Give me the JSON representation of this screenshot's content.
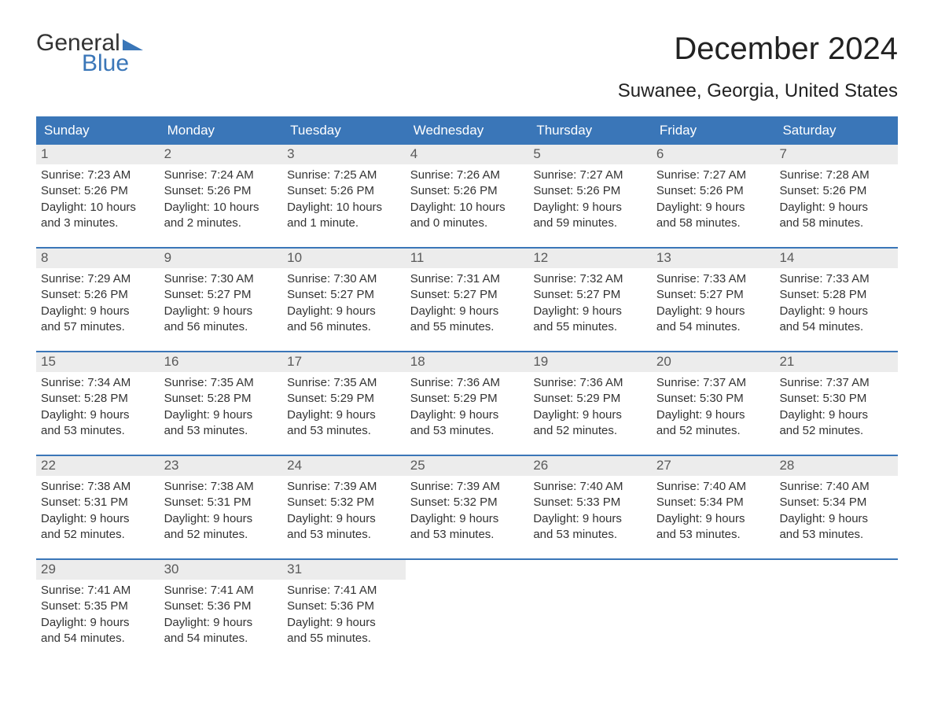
{
  "logo": {
    "word1": "General",
    "word2": "Blue",
    "flag_color": "#3a76b8"
  },
  "title": "December 2024",
  "subtitle": "Suwanee, Georgia, United States",
  "colors": {
    "header_bg": "#3a76b8",
    "header_text": "#ffffff",
    "daynum_bg": "#ececec",
    "daynum_text": "#5a5a5a",
    "body_text": "#333333",
    "week_border": "#3a76b8",
    "page_bg": "#ffffff"
  },
  "fonts": {
    "title_size_pt": 30,
    "subtitle_size_pt": 18,
    "header_size_pt": 13,
    "daynum_size_pt": 13,
    "body_size_pt": 11
  },
  "calendar": {
    "type": "table",
    "columns": [
      "Sunday",
      "Monday",
      "Tuesday",
      "Wednesday",
      "Thursday",
      "Friday",
      "Saturday"
    ],
    "weeks": [
      [
        {
          "n": "1",
          "sunrise": "Sunrise: 7:23 AM",
          "sunset": "Sunset: 5:26 PM",
          "d1": "Daylight: 10 hours",
          "d2": "and 3 minutes."
        },
        {
          "n": "2",
          "sunrise": "Sunrise: 7:24 AM",
          "sunset": "Sunset: 5:26 PM",
          "d1": "Daylight: 10 hours",
          "d2": "and 2 minutes."
        },
        {
          "n": "3",
          "sunrise": "Sunrise: 7:25 AM",
          "sunset": "Sunset: 5:26 PM",
          "d1": "Daylight: 10 hours",
          "d2": "and 1 minute."
        },
        {
          "n": "4",
          "sunrise": "Sunrise: 7:26 AM",
          "sunset": "Sunset: 5:26 PM",
          "d1": "Daylight: 10 hours",
          "d2": "and 0 minutes."
        },
        {
          "n": "5",
          "sunrise": "Sunrise: 7:27 AM",
          "sunset": "Sunset: 5:26 PM",
          "d1": "Daylight: 9 hours",
          "d2": "and 59 minutes."
        },
        {
          "n": "6",
          "sunrise": "Sunrise: 7:27 AM",
          "sunset": "Sunset: 5:26 PM",
          "d1": "Daylight: 9 hours",
          "d2": "and 58 minutes."
        },
        {
          "n": "7",
          "sunrise": "Sunrise: 7:28 AM",
          "sunset": "Sunset: 5:26 PM",
          "d1": "Daylight: 9 hours",
          "d2": "and 58 minutes."
        }
      ],
      [
        {
          "n": "8",
          "sunrise": "Sunrise: 7:29 AM",
          "sunset": "Sunset: 5:26 PM",
          "d1": "Daylight: 9 hours",
          "d2": "and 57 minutes."
        },
        {
          "n": "9",
          "sunrise": "Sunrise: 7:30 AM",
          "sunset": "Sunset: 5:27 PM",
          "d1": "Daylight: 9 hours",
          "d2": "and 56 minutes."
        },
        {
          "n": "10",
          "sunrise": "Sunrise: 7:30 AM",
          "sunset": "Sunset: 5:27 PM",
          "d1": "Daylight: 9 hours",
          "d2": "and 56 minutes."
        },
        {
          "n": "11",
          "sunrise": "Sunrise: 7:31 AM",
          "sunset": "Sunset: 5:27 PM",
          "d1": "Daylight: 9 hours",
          "d2": "and 55 minutes."
        },
        {
          "n": "12",
          "sunrise": "Sunrise: 7:32 AM",
          "sunset": "Sunset: 5:27 PM",
          "d1": "Daylight: 9 hours",
          "d2": "and 55 minutes."
        },
        {
          "n": "13",
          "sunrise": "Sunrise: 7:33 AM",
          "sunset": "Sunset: 5:27 PM",
          "d1": "Daylight: 9 hours",
          "d2": "and 54 minutes."
        },
        {
          "n": "14",
          "sunrise": "Sunrise: 7:33 AM",
          "sunset": "Sunset: 5:28 PM",
          "d1": "Daylight: 9 hours",
          "d2": "and 54 minutes."
        }
      ],
      [
        {
          "n": "15",
          "sunrise": "Sunrise: 7:34 AM",
          "sunset": "Sunset: 5:28 PM",
          "d1": "Daylight: 9 hours",
          "d2": "and 53 minutes."
        },
        {
          "n": "16",
          "sunrise": "Sunrise: 7:35 AM",
          "sunset": "Sunset: 5:28 PM",
          "d1": "Daylight: 9 hours",
          "d2": "and 53 minutes."
        },
        {
          "n": "17",
          "sunrise": "Sunrise: 7:35 AM",
          "sunset": "Sunset: 5:29 PM",
          "d1": "Daylight: 9 hours",
          "d2": "and 53 minutes."
        },
        {
          "n": "18",
          "sunrise": "Sunrise: 7:36 AM",
          "sunset": "Sunset: 5:29 PM",
          "d1": "Daylight: 9 hours",
          "d2": "and 53 minutes."
        },
        {
          "n": "19",
          "sunrise": "Sunrise: 7:36 AM",
          "sunset": "Sunset: 5:29 PM",
          "d1": "Daylight: 9 hours",
          "d2": "and 52 minutes."
        },
        {
          "n": "20",
          "sunrise": "Sunrise: 7:37 AM",
          "sunset": "Sunset: 5:30 PM",
          "d1": "Daylight: 9 hours",
          "d2": "and 52 minutes."
        },
        {
          "n": "21",
          "sunrise": "Sunrise: 7:37 AM",
          "sunset": "Sunset: 5:30 PM",
          "d1": "Daylight: 9 hours",
          "d2": "and 52 minutes."
        }
      ],
      [
        {
          "n": "22",
          "sunrise": "Sunrise: 7:38 AM",
          "sunset": "Sunset: 5:31 PM",
          "d1": "Daylight: 9 hours",
          "d2": "and 52 minutes."
        },
        {
          "n": "23",
          "sunrise": "Sunrise: 7:38 AM",
          "sunset": "Sunset: 5:31 PM",
          "d1": "Daylight: 9 hours",
          "d2": "and 52 minutes."
        },
        {
          "n": "24",
          "sunrise": "Sunrise: 7:39 AM",
          "sunset": "Sunset: 5:32 PM",
          "d1": "Daylight: 9 hours",
          "d2": "and 53 minutes."
        },
        {
          "n": "25",
          "sunrise": "Sunrise: 7:39 AM",
          "sunset": "Sunset: 5:32 PM",
          "d1": "Daylight: 9 hours",
          "d2": "and 53 minutes."
        },
        {
          "n": "26",
          "sunrise": "Sunrise: 7:40 AM",
          "sunset": "Sunset: 5:33 PM",
          "d1": "Daylight: 9 hours",
          "d2": "and 53 minutes."
        },
        {
          "n": "27",
          "sunrise": "Sunrise: 7:40 AM",
          "sunset": "Sunset: 5:34 PM",
          "d1": "Daylight: 9 hours",
          "d2": "and 53 minutes."
        },
        {
          "n": "28",
          "sunrise": "Sunrise: 7:40 AM",
          "sunset": "Sunset: 5:34 PM",
          "d1": "Daylight: 9 hours",
          "d2": "and 53 minutes."
        }
      ],
      [
        {
          "n": "29",
          "sunrise": "Sunrise: 7:41 AM",
          "sunset": "Sunset: 5:35 PM",
          "d1": "Daylight: 9 hours",
          "d2": "and 54 minutes."
        },
        {
          "n": "30",
          "sunrise": "Sunrise: 7:41 AM",
          "sunset": "Sunset: 5:36 PM",
          "d1": "Daylight: 9 hours",
          "d2": "and 54 minutes."
        },
        {
          "n": "31",
          "sunrise": "Sunrise: 7:41 AM",
          "sunset": "Sunset: 5:36 PM",
          "d1": "Daylight: 9 hours",
          "d2": "and 55 minutes."
        },
        null,
        null,
        null,
        null
      ]
    ]
  }
}
